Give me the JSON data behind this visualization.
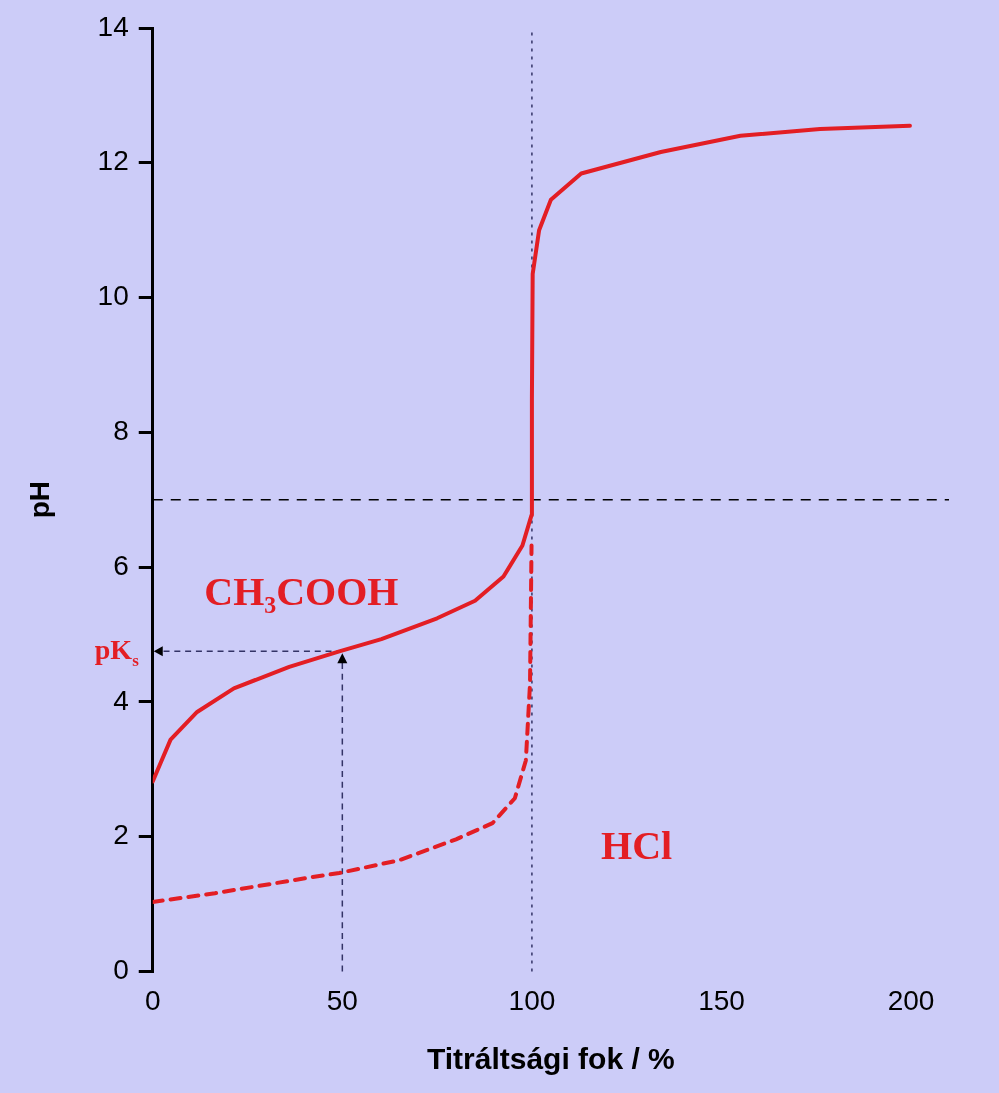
{
  "chart_data": {
    "type": "line",
    "xlabel": "Titráltsági fok / %",
    "ylabel": "pH",
    "xlim": [
      0,
      210
    ],
    "xticks": [
      0,
      50,
      100,
      150,
      200
    ],
    "ylim": [
      0,
      14
    ],
    "yticks": [
      0,
      2,
      4,
      6,
      8,
      10,
      12,
      14
    ],
    "grid": false,
    "legend": false,
    "marker": "none",
    "series": [
      {
        "name": "CH₃COOH",
        "color": "#e31e24",
        "line_style": "solid",
        "x": [
          0,
          4.7,
          11.7,
          21.4,
          36,
          49.2,
          60.3,
          75,
          85,
          92.5,
          97.5,
          99.9,
          100,
          100.2,
          101.9,
          105,
          113,
          134,
          155,
          176,
          199.7
        ],
        "values": [
          2.82,
          3.44,
          3.85,
          4.2,
          4.52,
          4.75,
          4.93,
          5.24,
          5.5,
          5.86,
          6.32,
          6.77,
          8.5,
          10.35,
          11,
          11.45,
          11.84,
          12.16,
          12.4,
          12.5,
          12.55
        ]
      },
      {
        "name": "HCl",
        "color": "#e31e24",
        "line_style": "dashed",
        "x": [
          0,
          16.4,
          41,
          49.2,
          65,
          80,
          89.6,
          95.5,
          98.4,
          99.5,
          99.9
        ],
        "values": [
          1.03,
          1.16,
          1.39,
          1.46,
          1.65,
          1.96,
          2.2,
          2.57,
          3.13,
          4.27,
          6.32
        ]
      }
    ],
    "ref_lines": [
      {
        "axis": "y",
        "value": 7,
        "line_style": "dashed",
        "color": "#000000"
      },
      {
        "axis": "x",
        "value": 100,
        "line_style": "dotted",
        "color": "#333366"
      }
    ],
    "annotations": [
      {
        "text": "pK$_{s}$",
        "x": 50,
        "y": 4.75
      }
    ]
  }
}
